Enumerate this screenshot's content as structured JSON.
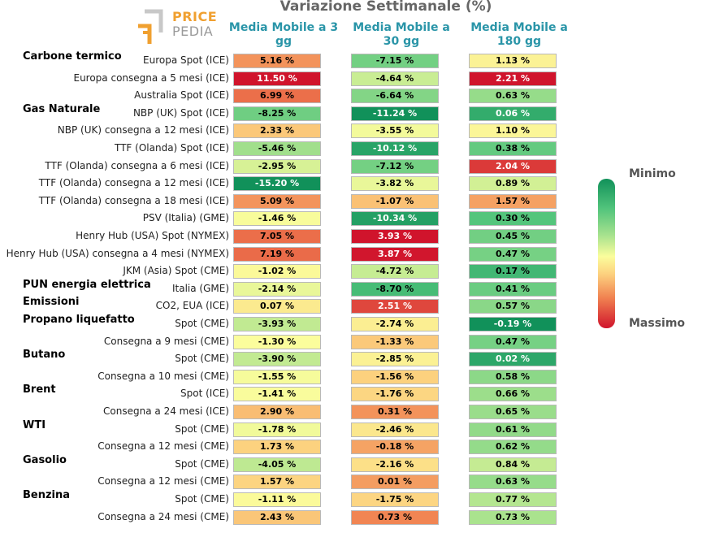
{
  "chart_data": {
    "type": "heatmap",
    "title": "Variazione Settimanale (%)",
    "brand": [
      "PRICE",
      "PEDIA"
    ],
    "columns": [
      "Media Mobile a 3 gg",
      "Media Mobile a 30 gg",
      "Media Mobile a 180 gg"
    ],
    "legend": {
      "min_label": "Minimo",
      "max_label": "Massimo"
    },
    "rows": [
      {
        "group": "Carbone termico",
        "label": "Europa Spot (ICE)",
        "values": [
          5.16,
          -7.15,
          1.13
        ],
        "display": [
          "5.16 %",
          "-7.15 %",
          "1.13 %"
        ]
      },
      {
        "group": "",
        "label": "Europa consegna a 5 mesi (ICE)",
        "values": [
          11.5,
          -4.64,
          2.21
        ],
        "display": [
          "11.50 %",
          "-4.64 %",
          "2.21 %"
        ]
      },
      {
        "group": "",
        "label": "Australia Spot (ICE)",
        "values": [
          6.99,
          -6.64,
          0.63
        ],
        "display": [
          "6.99 %",
          "-6.64 %",
          "0.63 %"
        ]
      },
      {
        "group": "Gas Naturale",
        "label": "NBP (UK) Spot (ICE)",
        "values": [
          -8.25,
          -11.24,
          0.06
        ],
        "display": [
          "-8.25 %",
          "-11.24 %",
          "0.06 %"
        ]
      },
      {
        "group": "",
        "label": "NBP (UK) consegna a 12 mesi (ICE)",
        "values": [
          2.33,
          -3.55,
          1.1
        ],
        "display": [
          "2.33 %",
          "-3.55 %",
          "1.10 %"
        ]
      },
      {
        "group": "",
        "label": "TTF (Olanda) Spot (ICE)",
        "values": [
          -5.46,
          -10.12,
          0.38
        ],
        "display": [
          "-5.46 %",
          "-10.12 %",
          "0.38 %"
        ]
      },
      {
        "group": "",
        "label": "TTF (Olanda) consegna a 6 mesi (ICE)",
        "values": [
          -2.95,
          -7.12,
          2.04
        ],
        "display": [
          "-2.95 %",
          "-7.12 %",
          "2.04 %"
        ]
      },
      {
        "group": "",
        "label": "TTF (Olanda) consegna a 12 mesi (ICE)",
        "values": [
          -15.2,
          -3.82,
          0.89
        ],
        "display": [
          "-15.20 %",
          "-3.82 %",
          "0.89 %"
        ]
      },
      {
        "group": "",
        "label": "TTF (Olanda) consegna a 18 mesi (ICE)",
        "values": [
          5.09,
          -1.07,
          1.57
        ],
        "display": [
          "5.09 %",
          "-1.07 %",
          "1.57 %"
        ]
      },
      {
        "group": "",
        "label": "PSV (Italia) (GME)",
        "values": [
          -1.46,
          -10.34,
          0.3
        ],
        "display": [
          "-1.46 %",
          "-10.34 %",
          "0.30 %"
        ]
      },
      {
        "group": "",
        "label": "Henry Hub (USA) Spot (NYMEX)",
        "values": [
          7.05,
          3.93,
          0.45
        ],
        "display": [
          "7.05 %",
          "3.93 %",
          "0.45 %"
        ]
      },
      {
        "group": "",
        "label": "Henry Hub (USA) consegna a 4 mesi (NYMEX)",
        "values": [
          7.19,
          3.87,
          0.47
        ],
        "display": [
          "7.19 %",
          "3.87 %",
          "0.47 %"
        ]
      },
      {
        "group": "",
        "label": "JKM (Asia) Spot (CME)",
        "values": [
          -1.02,
          -4.72,
          0.17
        ],
        "display": [
          "-1.02 %",
          "-4.72 %",
          "0.17 %"
        ]
      },
      {
        "group": "PUN energia elettrica",
        "label": "Italia (GME)",
        "values": [
          -2.14,
          -8.7,
          0.41
        ],
        "display": [
          "-2.14 %",
          "-8.70 %",
          "0.41 %"
        ]
      },
      {
        "group": "Emissioni",
        "label": "CO2, EUA (ICE)",
        "values": [
          0.07,
          2.51,
          0.57
        ],
        "display": [
          "0.07 %",
          "2.51 %",
          "0.57 %"
        ]
      },
      {
        "group": "Propano liquefatto",
        "label": "Spot (CME)",
        "values": [
          -3.93,
          -2.74,
          -0.19
        ],
        "display": [
          "-3.93 %",
          "-2.74 %",
          "-0.19 %"
        ]
      },
      {
        "group": "",
        "label": "Consegna a 9 mesi (CME)",
        "values": [
          -1.3,
          -1.33,
          0.47
        ],
        "display": [
          "-1.30 %",
          "-1.33 %",
          "0.47 %"
        ]
      },
      {
        "group": "Butano",
        "label": "Spot (CME)",
        "values": [
          -3.9,
          -2.85,
          0.02
        ],
        "display": [
          "-3.90 %",
          "-2.85 %",
          "0.02 %"
        ]
      },
      {
        "group": "",
        "label": "Consegna a 10 mesi (CME)",
        "values": [
          -1.55,
          -1.56,
          0.58
        ],
        "display": [
          "-1.55 %",
          "-1.56 %",
          "0.58 %"
        ]
      },
      {
        "group": "Brent",
        "label": "Spot (ICE)",
        "values": [
          -1.41,
          -1.76,
          0.66
        ],
        "display": [
          "-1.41 %",
          "-1.76 %",
          "0.66 %"
        ]
      },
      {
        "group": "",
        "label": "Consegna a 24 mesi (ICE)",
        "values": [
          2.9,
          0.31,
          0.65
        ],
        "display": [
          "2.90 %",
          "0.31 %",
          "0.65 %"
        ]
      },
      {
        "group": "WTI",
        "label": "Spot (CME)",
        "values": [
          -1.78,
          -2.46,
          0.61
        ],
        "display": [
          "-1.78 %",
          "-2.46 %",
          "0.61 %"
        ]
      },
      {
        "group": "",
        "label": "Consegna a 12 mesi (CME)",
        "values": [
          1.73,
          -0.18,
          0.62
        ],
        "display": [
          "1.73 %",
          "-0.18 %",
          "0.62 %"
        ]
      },
      {
        "group": "Gasolio",
        "label": "Spot (CME)",
        "values": [
          -4.05,
          -2.16,
          0.84
        ],
        "display": [
          "-4.05 %",
          "-2.16 %",
          "0.84 %"
        ]
      },
      {
        "group": "",
        "label": "Consegna a 12 mesi (CME)",
        "values": [
          1.57,
          0.01,
          0.63
        ],
        "display": [
          "1.57 %",
          "0.01 %",
          "0.63 %"
        ]
      },
      {
        "group": "Benzina",
        "label": "Spot (CME)",
        "values": [
          -1.11,
          -1.75,
          0.77
        ],
        "display": [
          "-1.11 %",
          "-1.75 %",
          "0.77 %"
        ]
      },
      {
        "group": "",
        "label": "Consegna a 24 mesi (CME)",
        "values": [
          2.43,
          0.73,
          0.73
        ],
        "display": [
          "2.43 %",
          "0.73 %",
          "0.73 %"
        ]
      }
    ]
  }
}
